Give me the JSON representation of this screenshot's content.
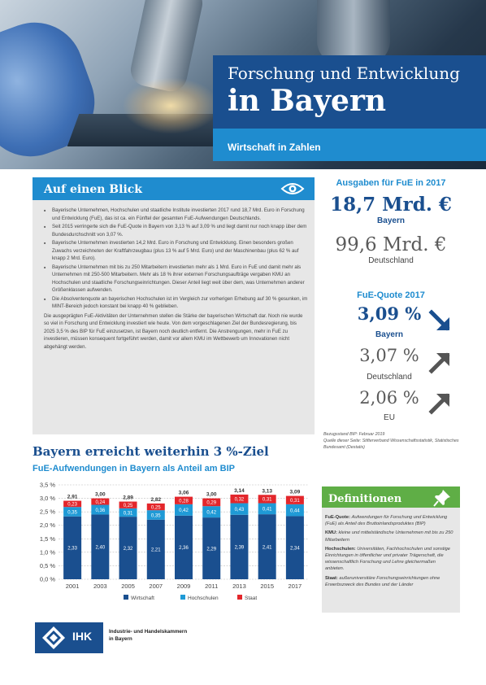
{
  "header": {
    "title_line1": "Forschung und Entwicklung",
    "title_line2": "in Bayern",
    "subtitle": "Wirtschaft in Zahlen"
  },
  "glance": {
    "heading": "Auf einen Blick",
    "icon": "eye-icon",
    "bullets": [
      "Bayerische Unternehmen, Hochschulen und staatliche Institute investierten 2017 rund 18,7 Mrd. Euro in Forschung und Entwicklung (FuE), das ist ca. ein Fünftel der gesamten FuE-Aufwendungen Deutschlands.",
      "Seit 2015 verringerte sich die FuE-Quote in Bayern von 3,13 % auf 3,09 % und liegt damit nur noch knapp über dem Bundesdurchschnitt von 3,07 %.",
      "Bayerische Unternehmen investierten 14,2 Mrd. Euro in Forschung und Entwicklung. Einen besonders großen Zuwachs verzeichneten der Kraftfahrzeugbau (plus 13 % auf 5 Mrd. Euro) und der Maschinenbau (plus 62 % auf knapp 2 Mrd. Euro).",
      "Bayerische Unternehmen mit bis zu 250 Mitarbeitern investierten mehr als 1 Mrd. Euro in FuE und damit mehr als Unternehmen mit 250-500 Mitarbeitern. Mehr als 18 % ihrer externen Forschungsaufträge vergaben KMU an Hochschulen und staatliche Forschungseinrichtungen. Dieser Anteil liegt weit über dem, was Unternehmen anderer Größenklassen aufwenden.",
      "Die Absolventenquote an bayerischen Hochschulen ist im Vergleich zur vorherigen Erhebung auf 30 % gesunken, im MINT-Bereich jedoch konstant bei knapp 40 % geblieben."
    ],
    "paragraph": "Die ausgeprägten FuE-Aktivitäten der Unternehmen stellen die Stärke der bayerischen Wirtschaft dar. Noch nie wurde so viel in Forschung und Entwicklung investiert wie heute. Von dem vorgeschlagenen Ziel der Bundesregierung, bis 2025 3,5 % des BIP für FuE einzusetzen, ist Bayern noch deutlich entfernt. Die Anstrengungen, mehr in FuE zu investieren, müssen konsequent fortgeführt werden, damit vor allem KMU im Wettbewerb um Innovationen nicht abgehängt werden."
  },
  "spending": {
    "label": "Ausgaben für FuE in 2017",
    "bayern_value": "18,7 Mrd. €",
    "bayern_caption": "Bayern",
    "de_value": "99,6 Mrd. €",
    "de_caption": "Deutschland"
  },
  "quote": {
    "label": "FuE-Quote 2017",
    "rows": [
      {
        "value": "3,09 %",
        "caption": "Bayern",
        "trend": "down",
        "icon": "arrow-down-right-icon",
        "color": "#1a4f8f"
      },
      {
        "value": "3,07 %",
        "caption": "Deutschland",
        "trend": "up",
        "icon": "arrow-up-right-icon",
        "color": "#5a5a5a"
      },
      {
        "value": "2,06 %",
        "caption": "EU",
        "trend": "up",
        "icon": "arrow-up-right-icon",
        "color": "#5a5a5a"
      }
    ]
  },
  "source": {
    "line1": "Bezugsstand BIP: Februar 2019",
    "line2": "Quelle dieser Seite: Stifterverband Wissenschaftsstatistik, Statistisches Bundesamt (Destatis)"
  },
  "chart_section": {
    "title": "Bayern erreicht weiterhin 3 %-Ziel",
    "subtitle": "FuE-Aufwendungen in Bayern als Anteil am BIP"
  },
  "chart_data": {
    "type": "bar",
    "stacked": true,
    "categories": [
      "2001",
      "2003",
      "2005",
      "2007",
      "2009",
      "2011",
      "2013",
      "2015",
      "2017"
    ],
    "series": [
      {
        "name": "Wirtschaft",
        "color": "#1a4f8f",
        "values": [
          2.33,
          2.4,
          2.32,
          2.21,
          2.36,
          2.29,
          2.39,
          2.41,
          2.34
        ],
        "labels": [
          "2,33",
          "2,40",
          "2,32",
          "2,21",
          "2,36",
          "2,29",
          "2,39",
          "2,41",
          "2,34"
        ]
      },
      {
        "name": "Hochschulen",
        "color": "#1f9ad6",
        "values": [
          0.35,
          0.36,
          0.31,
          0.35,
          0.42,
          0.42,
          0.43,
          0.41,
          0.44
        ],
        "labels": [
          "0,35",
          "0,36",
          "0,31",
          "0,35",
          "0,42",
          "0,42",
          "0,43",
          "0,41",
          "0,44"
        ]
      },
      {
        "name": "Staat",
        "color": "#e3262b",
        "values": [
          0.23,
          0.24,
          0.25,
          0.25,
          0.28,
          0.29,
          0.32,
          0.31,
          0.31
        ],
        "labels": [
          "0,23",
          "0,24",
          "0,25",
          "0,25",
          "0,28",
          "0,29",
          "0,32",
          "0,31",
          "0,31"
        ]
      }
    ],
    "totals": [
      "2,91",
      "3,00",
      "2,89",
      "2,82",
      "3,06",
      "3,00",
      "3,14",
      "3,13",
      "3,09"
    ],
    "yticks": [
      "0,0 %",
      "0,5 %",
      "1,0 %",
      "1,5 %",
      "2,0 %",
      "2,5 %",
      "3,0 %",
      "3,5 %"
    ],
    "ylim": [
      0,
      3.5
    ],
    "grid": true,
    "legend": "bottom"
  },
  "definitions": {
    "heading": "Definitionen",
    "icon": "pin-icon",
    "items": [
      {
        "term": "FuE-Quote:",
        "text": "Aufwendungen für Forschung und Entwicklung (FuE) als Anteil des Bruttoinlandsproduktes (BIP)"
      },
      {
        "term": "KMU:",
        "text": "kleine und mittelständische Unternehmen mit bis zu 250 Mitarbeitern"
      },
      {
        "term": "Hochschulen:",
        "text": "Universitäten, Fachhochschulen und sonstige Einrichtungen in öffentlicher und privater Trägerschaft, die wissenschaftlich Forschung und Lehre gleichermaßen anbieten."
      },
      {
        "term": "Staat:",
        "text": "außeruniversitäre Forschungseinrichtungen ohne Erwerbszweck des Bundes und der Länder"
      }
    ]
  },
  "footer": {
    "logo_text": "IHK",
    "org_line1": "Industrie- und Handelskammern",
    "org_line2": "in Bayern"
  }
}
